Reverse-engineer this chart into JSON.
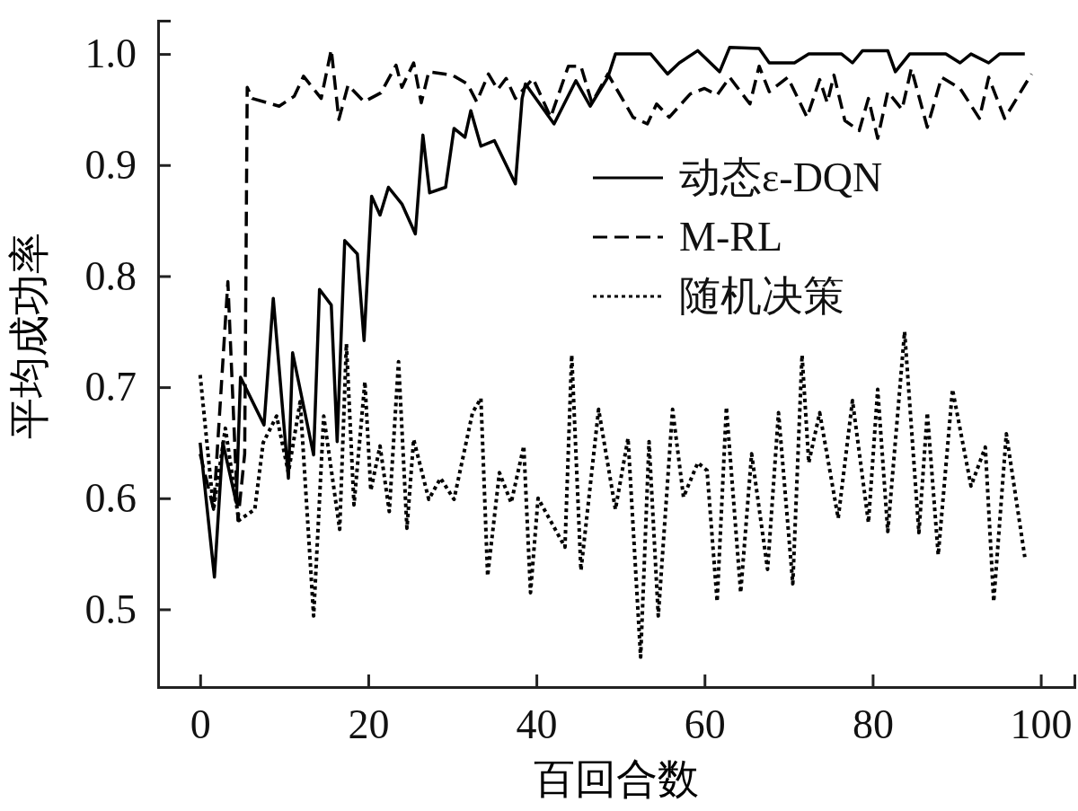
{
  "chart_data": {
    "type": "line",
    "xlabel": "百回合数",
    "ylabel": "平均成功率",
    "xlim": [
      -5,
      104
    ],
    "ylim": [
      0.43,
      1.03
    ],
    "xticks": [
      0,
      20,
      40,
      60,
      80,
      100
    ],
    "yticks": [
      0.5,
      0.6,
      0.7,
      0.8,
      0.9,
      {
        "value": 1,
        "label": "1.0"
      }
    ],
    "grid": false,
    "legend": "right",
    "marker": "none",
    "series": [
      {
        "name": "动态ε-DQN",
        "color": "#000000",
        "line_style": "solid",
        "x": [
          0,
          1.7,
          2.7,
          4.3,
          4.8,
          7.6,
          8.7,
          10.5,
          11,
          13.5,
          14.2,
          15.6,
          16.3,
          17.2,
          18.7,
          19.5,
          20.4,
          21.4,
          22.4,
          24,
          25.6,
          26.5,
          27.3,
          29.2,
          30.2,
          31.5,
          32.2,
          33.4,
          35,
          37.5,
          38.3,
          38.7,
          42.1,
          44.7,
          46.4,
          48.5,
          49.4,
          53.6,
          55.6,
          57,
          59.2,
          61.8,
          63,
          66.5,
          67.7,
          70.7,
          72.4,
          76.3,
          77.6,
          78.8,
          81.8,
          82.7,
          84.4,
          88.7,
          90.4,
          91.7,
          93.8,
          95.1,
          98.1
        ],
        "values": [
          0.65,
          0.529,
          0.65,
          0.596,
          0.709,
          0.666,
          0.78,
          0.618,
          0.731,
          0.639,
          0.788,
          0.774,
          0.651,
          0.832,
          0.82,
          0.742,
          0.872,
          0.855,
          0.88,
          0.865,
          0.838,
          0.927,
          0.875,
          0.88,
          0.933,
          0.925,
          0.949,
          0.917,
          0.922,
          0.883,
          0.96,
          0.973,
          0.937,
          0.976,
          0.953,
          0.979,
          1.0,
          1.0,
          0.982,
          0.992,
          1.003,
          0.984,
          1.006,
          1.005,
          0.992,
          0.992,
          1.0,
          1.0,
          0.992,
          1.003,
          1.003,
          0.984,
          1.0,
          1.0,
          0.992,
          1.0,
          0.992,
          1.0,
          1.0
        ]
      },
      {
        "name": "M-RL",
        "color": "#000000",
        "line_style": "dashed",
        "x": [
          0,
          1.6,
          3.3,
          4.5,
          5.3,
          5.6,
          6.2,
          9.4,
          11.2,
          12.3,
          14.4,
          15.6,
          16.5,
          17.6,
          19.5,
          21.5,
          23.3,
          24,
          25.4,
          26.3,
          27.2,
          30,
          31.8,
          32.9,
          34.3,
          35.4,
          36.4,
          37.5,
          39.6,
          41.7,
          43.8,
          45.3,
          46.6,
          48.5,
          51.5,
          53.2,
          54.3,
          55.8,
          58.3,
          60,
          61.5,
          63,
          65.4,
          66.5,
          67.7,
          69.9,
          72.2,
          73.7,
          74.6,
          75.4,
          76.7,
          78.4,
          79.5,
          80.6,
          81.8,
          83.5,
          84.6,
          86.5,
          88.2,
          90.4,
          92.7,
          93.8,
          95.7,
          98.9
        ],
        "values": [
          0.64,
          0.59,
          0.795,
          0.58,
          0.64,
          0.97,
          0.96,
          0.953,
          0.962,
          0.98,
          0.96,
          1.004,
          0.941,
          0.972,
          0.957,
          0.965,
          0.99,
          0.97,
          0.992,
          0.956,
          0.984,
          0.981,
          0.973,
          0.957,
          0.982,
          0.968,
          0.978,
          0.96,
          0.978,
          0.943,
          0.989,
          0.989,
          0.956,
          0.982,
          0.943,
          0.937,
          0.955,
          0.943,
          0.964,
          0.969,
          0.963,
          0.979,
          0.955,
          0.989,
          0.966,
          0.979,
          0.943,
          0.977,
          0.956,
          0.981,
          0.94,
          0.931,
          0.96,
          0.924,
          0.966,
          0.95,
          0.987,
          0.934,
          0.979,
          0.969,
          0.942,
          0.979,
          0.942,
          0.982
        ]
      },
      {
        "name": "随机决策",
        "color": "#000000",
        "line_style": "dotted",
        "x": [
          0,
          1.6,
          3,
          4.6,
          6.5,
          7.5,
          9.1,
          10.5,
          11.9,
          13.5,
          14.7,
          16.6,
          17.4,
          18.3,
          19.6,
          20.3,
          21.4,
          22.5,
          23.6,
          24.6,
          25.4,
          27.2,
          28.6,
          30.2,
          32.4,
          33.4,
          34.2,
          35.6,
          37,
          38.5,
          39.3,
          40.2,
          43.4,
          44.2,
          45.3,
          47.4,
          49.4,
          50.9,
          52.4,
          53.4,
          54.5,
          56.2,
          57.5,
          59.2,
          60.3,
          61.5,
          62.6,
          64.3,
          65.6,
          67.5,
          68.8,
          70.5,
          71.6,
          72.4,
          73.7,
          75.9,
          77.6,
          79.5,
          80.6,
          81.8,
          83.8,
          85.5,
          86.5,
          87.8,
          89.5,
          91.7,
          93.4,
          94.4,
          95.9,
          98.1
        ],
        "values": [
          0.711,
          0.59,
          0.663,
          0.58,
          0.59,
          0.65,
          0.674,
          0.623,
          0.687,
          0.494,
          0.674,
          0.572,
          0.739,
          0.594,
          0.705,
          0.607,
          0.647,
          0.588,
          0.723,
          0.573,
          0.653,
          0.599,
          0.618,
          0.599,
          0.677,
          0.69,
          0.53,
          0.623,
          0.596,
          0.647,
          0.515,
          0.6,
          0.556,
          0.729,
          0.535,
          0.68,
          0.59,
          0.654,
          0.457,
          0.651,
          0.494,
          0.68,
          0.601,
          0.632,
          0.625,
          0.507,
          0.682,
          0.515,
          0.64,
          0.536,
          0.677,
          0.523,
          0.729,
          0.632,
          0.677,
          0.582,
          0.688,
          0.578,
          0.698,
          0.57,
          0.75,
          0.569,
          0.677,
          0.549,
          0.698,
          0.611,
          0.646,
          0.507,
          0.658,
          0.547
        ]
      }
    ]
  }
}
